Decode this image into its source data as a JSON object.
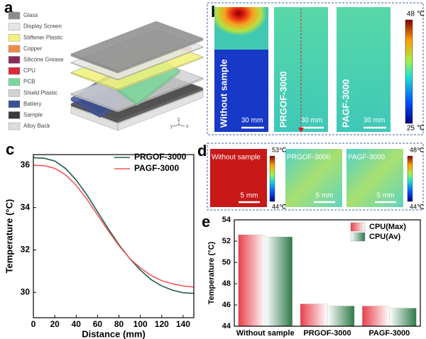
{
  "panels": {
    "a": {
      "letter": "a",
      "layers": [
        {
          "label": "Glass",
          "color": "#8c8c8c"
        },
        {
          "label": "Display Screen",
          "color": "#e6e6e6"
        },
        {
          "label": "Stiffener Plastic",
          "color": "#f2f27a"
        },
        {
          "label": "Copper",
          "color": "#f08a4a"
        },
        {
          "label": "Silicone Grease",
          "color": "#8a2a5a"
        },
        {
          "label": "CPU",
          "color": "#d8283a"
        },
        {
          "label": "PCB",
          "color": "#7ad89a"
        },
        {
          "label": "Shield Plastic",
          "color": "#d2d2d2"
        },
        {
          "label": "Battery",
          "color": "#3a4f9a"
        },
        {
          "label": "Sample",
          "color": "#3a3a3a"
        },
        {
          "label": "Alloy Back",
          "color": "#dcdcdc"
        }
      ],
      "axes": [
        "z",
        "y",
        "x"
      ]
    },
    "b": {
      "letter": "b",
      "samples": [
        {
          "label": "Without sample",
          "scale": "30 mm"
        },
        {
          "label": "PRGOF-3000",
          "scale": "30 mm"
        },
        {
          "label": "PAGF-3000",
          "scale": "30 mm"
        }
      ],
      "colorbar": {
        "max": "48 ℃",
        "min": "25 ℃"
      }
    },
    "c": {
      "letter": "c"
    },
    "d": {
      "letter": "d",
      "samples": [
        {
          "label": "Without sample",
          "scale": "5 mm"
        },
        {
          "label": "PRGOF-3000",
          "scale": "5 mm"
        },
        {
          "label": "PAGF-3000",
          "scale": "5 mm"
        }
      ],
      "colorbars": [
        {
          "max": "53℃",
          "min": "44℃"
        },
        {
          "max": "48℃",
          "min": "44℃"
        }
      ]
    },
    "e": {
      "letter": "e"
    }
  },
  "chart_data": [
    {
      "type": "line",
      "x_label": "Distance (mm)",
      "y_label": "Temperature (°C)",
      "x": [
        0,
        10,
        20,
        30,
        40,
        50,
        60,
        70,
        80,
        90,
        100,
        110,
        120,
        130,
        140,
        150
      ],
      "series": [
        {
          "name": "PRGOF-3000",
          "color": "#1d5e4c",
          "values": [
            36.35,
            36.33,
            36.2,
            35.85,
            35.3,
            34.6,
            33.8,
            33.0,
            32.25,
            31.6,
            31.05,
            30.6,
            30.3,
            30.1,
            29.98,
            29.95
          ]
        },
        {
          "name": "PAGF-3000",
          "color": "#f2585c",
          "values": [
            36.0,
            35.98,
            35.85,
            35.55,
            35.05,
            34.4,
            33.65,
            32.9,
            32.2,
            31.6,
            31.15,
            30.8,
            30.55,
            30.4,
            30.3,
            30.25
          ]
        }
      ],
      "xlim": [
        0,
        150
      ],
      "xticks": [
        0,
        20,
        40,
        60,
        80,
        100,
        120,
        140
      ],
      "ylim": [
        28.8,
        36.5
      ],
      "yticks": [
        30,
        32,
        34,
        36
      ],
      "legend": "upper right"
    },
    {
      "type": "bar",
      "y_label": "Temperature (°C)",
      "categories": [
        "Without sample",
        "PRGOF-3000",
        "PAGF-3000"
      ],
      "series": [
        {
          "name": "CPU(Max)",
          "color": "#e8404a",
          "values": [
            52.6,
            46.1,
            45.9
          ]
        },
        {
          "name": "CPU(Av)",
          "color": "#2e7a4a",
          "values": [
            52.4,
            45.9,
            45.7
          ]
        }
      ],
      "ylim": [
        44,
        54
      ],
      "yticks": [
        44,
        46,
        48,
        50,
        52,
        54
      ],
      "legend": "upper right"
    }
  ]
}
